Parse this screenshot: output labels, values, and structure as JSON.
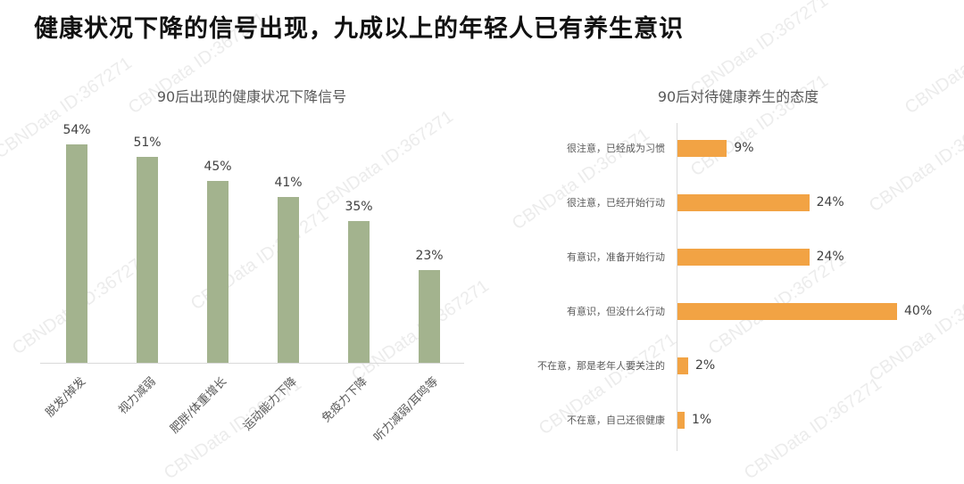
{
  "page": {
    "title": "健康状况下降的信号出现，九成以上的年轻人已有养生意识",
    "watermark": "CBNData ID:367271"
  },
  "colors": {
    "left_bar": "#a3b38e",
    "right_bar": "#f2a344",
    "axis": "#d9d9d9"
  },
  "chart_data": [
    {
      "type": "bar",
      "title": "90后出现的健康状况下降信号",
      "categories": [
        "脱发/掉发",
        "视力减弱",
        "肥胖/体重增长",
        "运动能力下降",
        "免疫力下降",
        "听力减弱/耳鸣等"
      ],
      "values": [
        54,
        51,
        45,
        41,
        35,
        23
      ],
      "value_labels": [
        "54%",
        "51%",
        "45%",
        "41%",
        "35%",
        "23%"
      ],
      "xlabel": "",
      "ylabel": "",
      "unit": "%",
      "grid": false,
      "legend": null
    },
    {
      "type": "bar",
      "orientation": "horizontal",
      "title": "90后对待健康养生的态度",
      "categories": [
        "很注意，已经成为习惯",
        "很注意，已经开始行动",
        "有意识，准备开始行动",
        "有意识，但没什么行动",
        "不在意，那是老年人要关注的",
        "不在意，自己还很健康"
      ],
      "values": [
        9,
        24,
        24,
        40,
        2,
        1
      ],
      "value_labels": [
        "9%",
        "24%",
        "24%",
        "40%",
        "2%",
        "1%"
      ],
      "xlabel": "",
      "ylabel": "",
      "unit": "%",
      "grid": false,
      "legend": null
    }
  ]
}
